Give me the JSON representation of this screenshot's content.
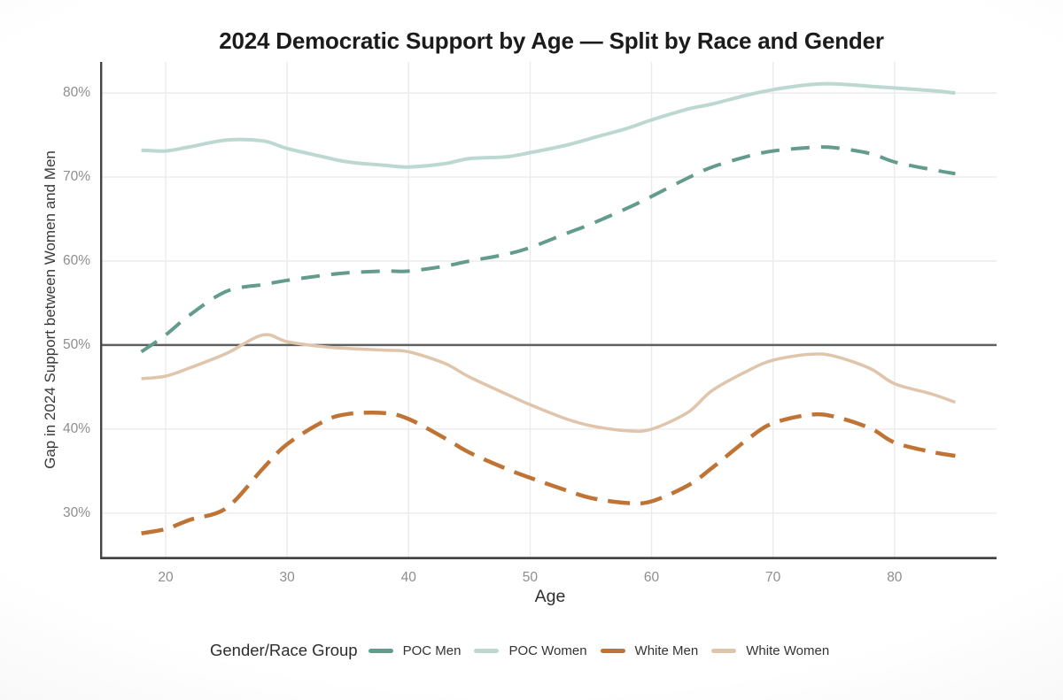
{
  "header": {
    "title": "2024 Democratic Support by Age — Split by Race and Gender"
  },
  "legend": {
    "title": "Gender/Race Group"
  },
  "colors": {
    "poc_men": "#639b8d",
    "poc_women": "#bcd8d1",
    "white_men": "#bf7435",
    "white_women": "#dfc5ab",
    "reference_line": "#5f5f5f",
    "axis_line": "#454545",
    "gridline": "#ebebeb",
    "tick_text": "#8e8e8e",
    "title_text": "#1b1b1b"
  },
  "chart_data": {
    "type": "line",
    "title": "2024 Democratic Support by Age — Split by Race and Gender",
    "xlabel": "Age",
    "ylabel": "Gap in 2024 Support between Women and Men",
    "x_ticks": [
      20,
      30,
      40,
      50,
      60,
      70,
      80
    ],
    "y_ticks": [
      30,
      40,
      50,
      60,
      70,
      80
    ],
    "y_tick_suffix": "%",
    "xlim": [
      14.6,
      88.4
    ],
    "ylim": [
      24.5,
      83.7
    ],
    "grid": true,
    "reference_line_y": 50,
    "legend_position": "bottom",
    "ages": [
      18,
      20,
      22,
      25,
      28,
      30,
      33,
      35,
      38,
      40,
      43,
      45,
      48,
      50,
      53,
      55,
      58,
      60,
      63,
      65,
      68,
      70,
      73,
      75,
      78,
      80,
      83,
      85
    ],
    "series": [
      {
        "name": "POC Men",
        "color": "#639b8d",
        "line_style": "dashed",
        "stroke_width": 4,
        "values": [
          49.2,
          51.2,
          53.6,
          56.4,
          57.2,
          57.7,
          58.3,
          58.6,
          58.8,
          58.8,
          59.4,
          60.0,
          60.8,
          61.6,
          63.3,
          64.4,
          66.3,
          67.7,
          69.9,
          71.2,
          72.5,
          73.1,
          73.5,
          73.5,
          72.8,
          71.8,
          70.9,
          70.4
        ]
      },
      {
        "name": "POC Women",
        "color": "#bcd8d1",
        "line_style": "solid",
        "stroke_width": 4,
        "values": [
          73.2,
          73.1,
          73.6,
          74.4,
          74.3,
          73.4,
          72.4,
          71.8,
          71.4,
          71.2,
          71.6,
          72.2,
          72.4,
          72.9,
          73.8,
          74.6,
          75.8,
          76.8,
          78.1,
          78.7,
          79.8,
          80.4,
          81.0,
          81.1,
          80.8,
          80.6,
          80.3,
          80.0
        ]
      },
      {
        "name": "White Men",
        "color": "#bf7435",
        "line_style": "dashed",
        "stroke_width": 4.5,
        "values": [
          27.6,
          28.1,
          29.2,
          30.6,
          35.3,
          38.2,
          40.9,
          41.8,
          41.9,
          41.2,
          38.9,
          37.2,
          35.3,
          34.2,
          32.7,
          31.8,
          31.2,
          31.4,
          33.3,
          35.4,
          38.9,
          40.7,
          41.7,
          41.5,
          40.1,
          38.4,
          37.3,
          36.8
        ]
      },
      {
        "name": "White Women",
        "color": "#dfc5ab",
        "line_style": "solid",
        "stroke_width": 3.5,
        "values": [
          46.0,
          46.3,
          47.3,
          49.0,
          51.2,
          50.4,
          49.8,
          49.6,
          49.4,
          49.2,
          47.8,
          46.2,
          44.2,
          42.9,
          41.2,
          40.4,
          39.8,
          40.0,
          42.0,
          44.6,
          47.0,
          48.2,
          48.9,
          48.7,
          47.2,
          45.4,
          44.2,
          43.2
        ]
      }
    ]
  }
}
